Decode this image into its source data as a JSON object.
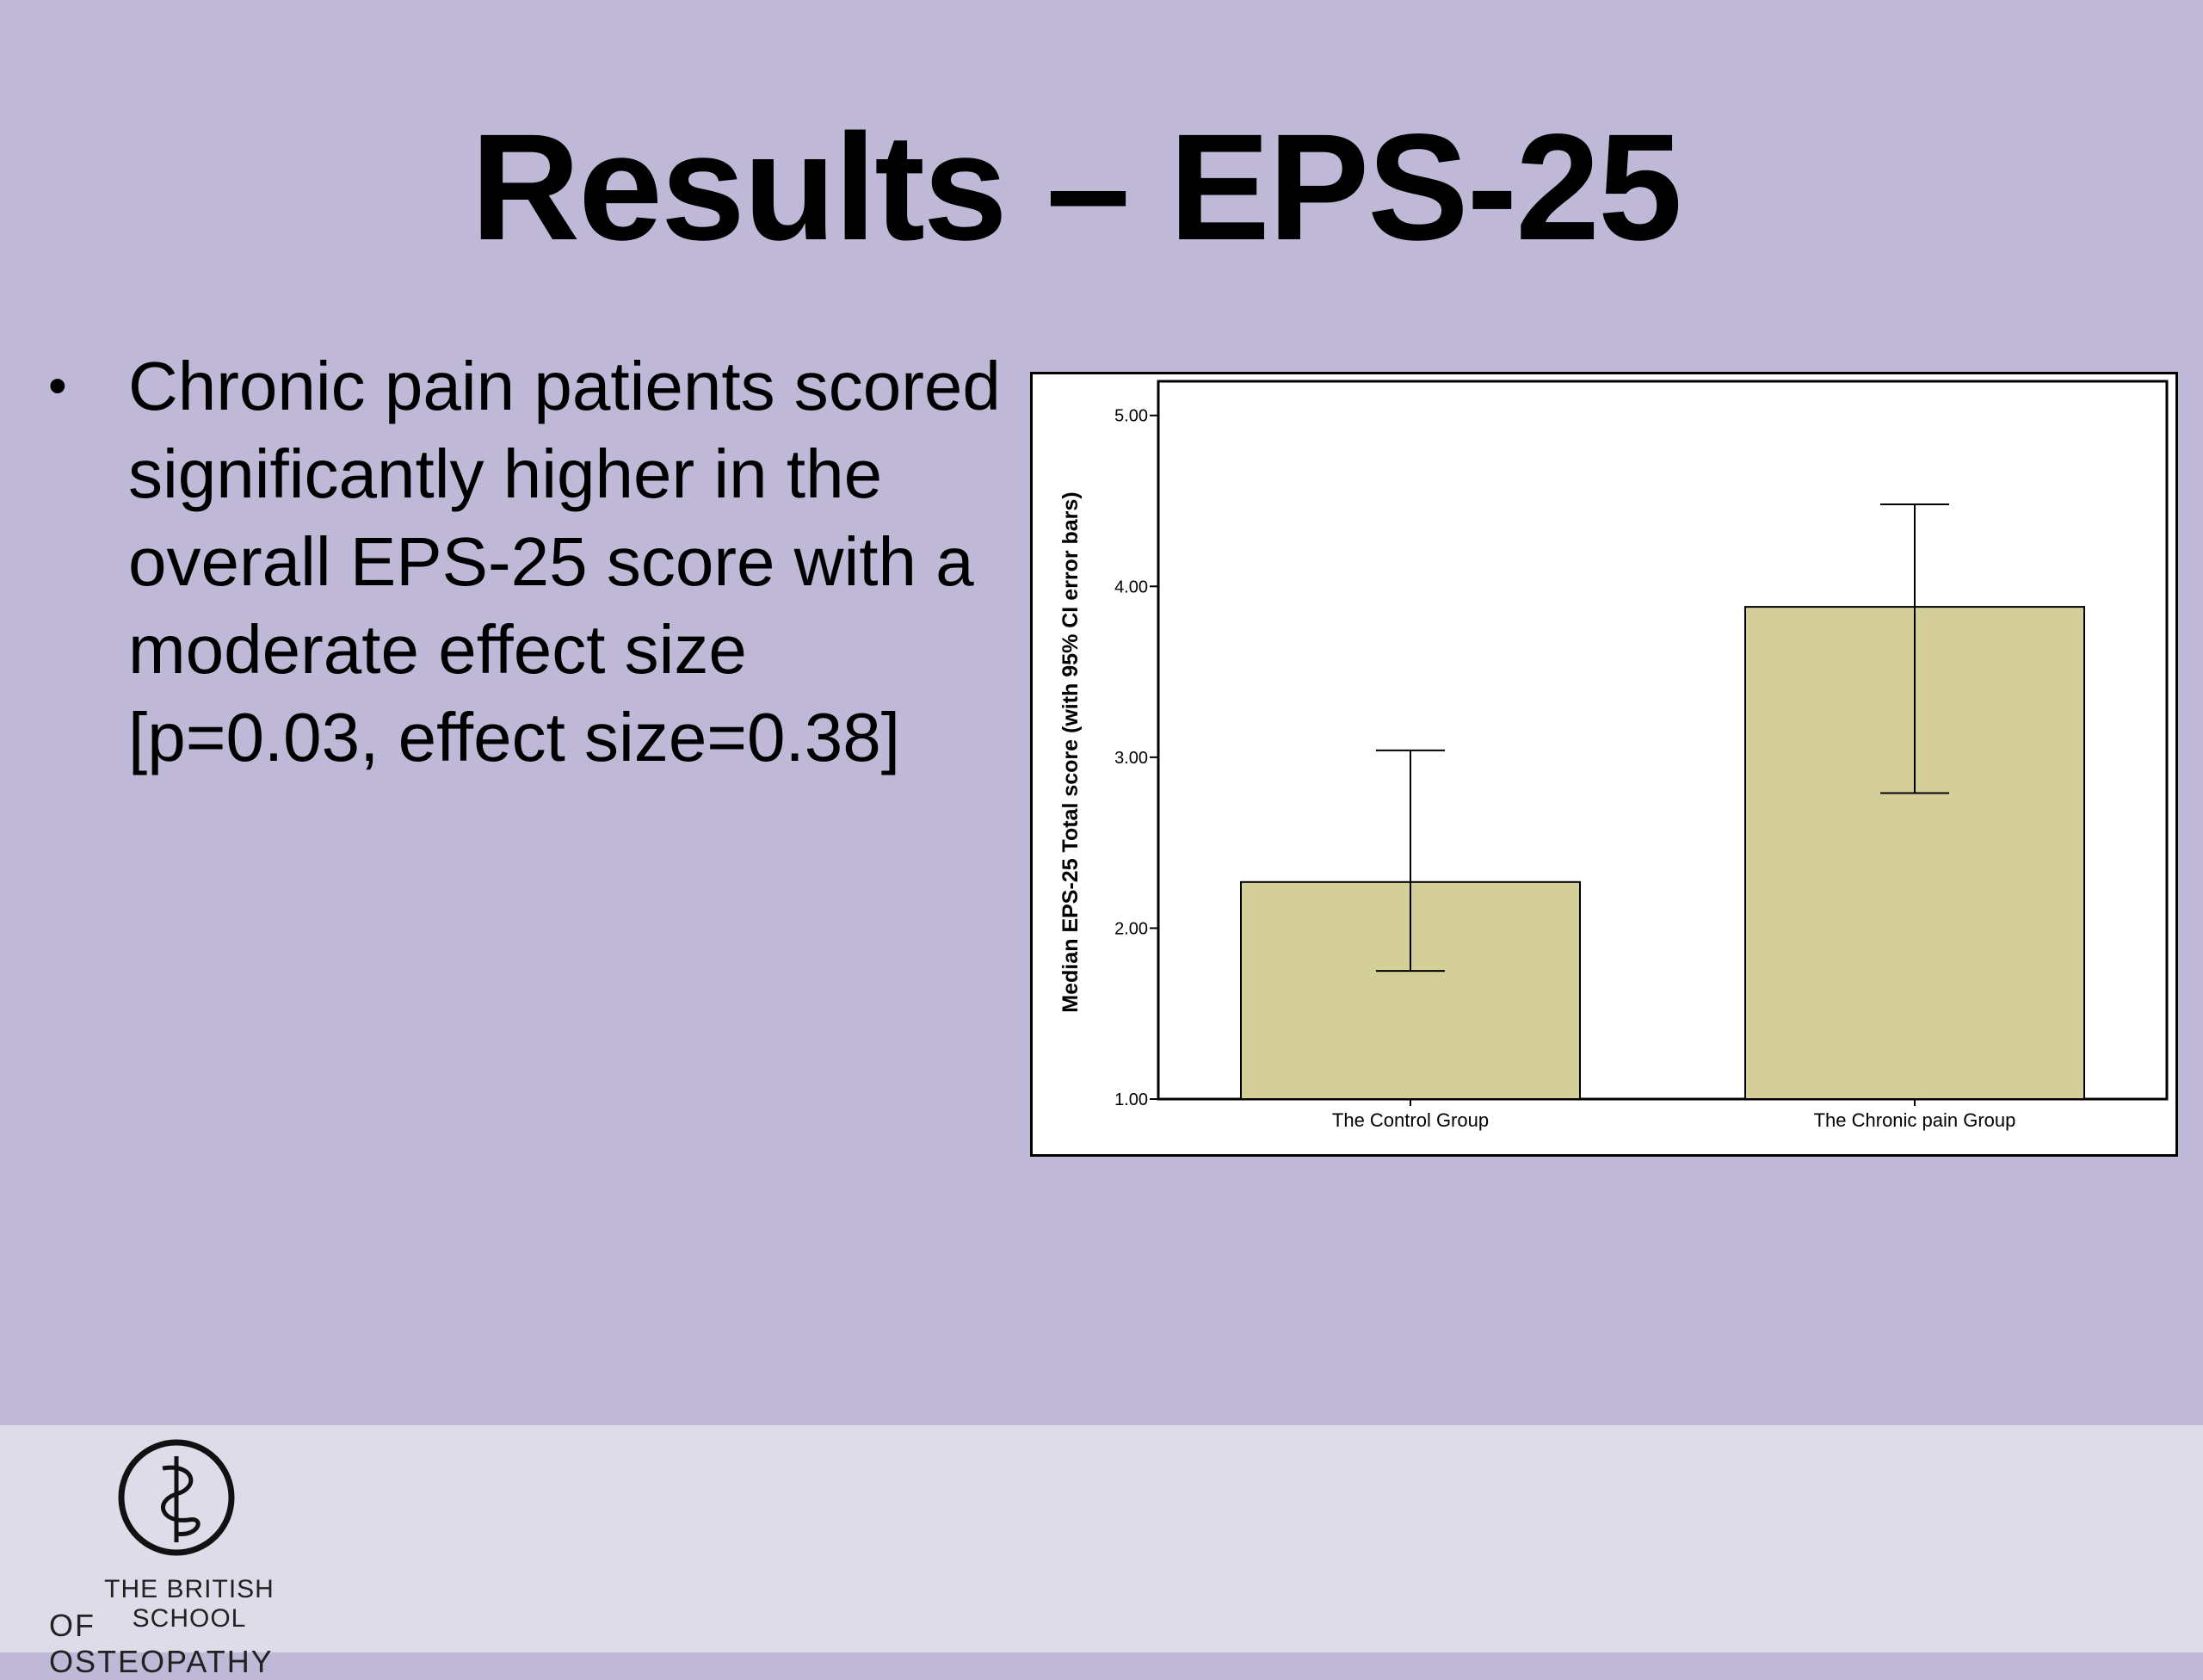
{
  "slide": {
    "title": "Results – EPS-25",
    "bullet": "Chronic pain patients scored significantly higher in the overall EPS-25 score with a moderate effect size [p=0.03, effect size=0.38]",
    "bullet_symbol": "•"
  },
  "logo": {
    "line1": "THE BRITISH SCHOOL",
    "line2": "OF OSTEOPATHY"
  },
  "chart_data": {
    "type": "bar",
    "categories": [
      "The Control Group",
      "The Chronic pain Group"
    ],
    "values": [
      2.27,
      3.88
    ],
    "error_low": [
      1.75,
      2.79
    ],
    "error_high": [
      3.04,
      4.48
    ],
    "ylabel": "Median EPS-25 Total score (with 95% CI error bars)",
    "xlabel": "",
    "ylim": [
      1.0,
      5.2
    ],
    "yticks": [
      "1.00",
      "2.00",
      "3.00",
      "4.00",
      "5.00"
    ],
    "grid": false,
    "bar_color": "#d4cf98"
  }
}
